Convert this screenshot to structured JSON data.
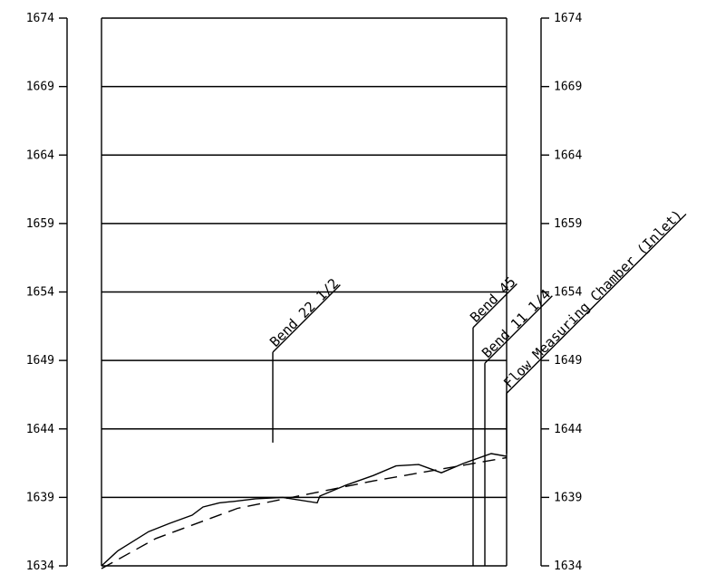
{
  "chart_data": {
    "type": "line",
    "elevation_ticks": [
      "1674",
      "1669",
      "1664",
      "1659",
      "1654",
      "1649",
      "1644",
      "1639",
      "1634"
    ],
    "ylim": [
      1634,
      1674
    ],
    "grid": true,
    "series": [
      {
        "style": "solid",
        "points": [
          [
            0,
            1634.0
          ],
          [
            18,
            1635.1
          ],
          [
            35,
            1635.8
          ],
          [
            52,
            1636.5
          ],
          [
            75,
            1637.1
          ],
          [
            100,
            1637.7
          ],
          [
            112,
            1638.3
          ],
          [
            130,
            1638.6
          ],
          [
            145,
            1638.7
          ],
          [
            170,
            1638.9
          ],
          [
            200,
            1639.0
          ],
          [
            238,
            1638.6
          ],
          [
            241,
            1639.1
          ],
          [
            270,
            1639.9
          ],
          [
            300,
            1640.6
          ],
          [
            325,
            1641.3
          ],
          [
            350,
            1641.4
          ],
          [
            375,
            1640.8
          ],
          [
            400,
            1641.5
          ],
          [
            430,
            1642.2
          ],
          [
            447,
            1642.0
          ]
        ]
      },
      {
        "style": "dashed",
        "points": [
          [
            0,
            1633.8
          ],
          [
            60,
            1636.0
          ],
          [
            150,
            1638.2
          ],
          [
            300,
            1640.2
          ],
          [
            447,
            1641.9
          ]
        ]
      }
    ],
    "annotations": [
      {
        "text": "Bend 22 1/2",
        "x": 189,
        "base": 1643.0,
        "top": 1649.6
      },
      {
        "text": "Bend 45",
        "x": 410,
        "base": 1634.0,
        "top": 1651.4
      },
      {
        "text": "Bend 11 1/4",
        "x": 423,
        "base": 1634.0,
        "top": 1648.8
      },
      {
        "text": "Flow Measuring Chamber (Inlet)",
        "x": 447,
        "base": 1642.2,
        "top": 1646.6
      }
    ]
  }
}
